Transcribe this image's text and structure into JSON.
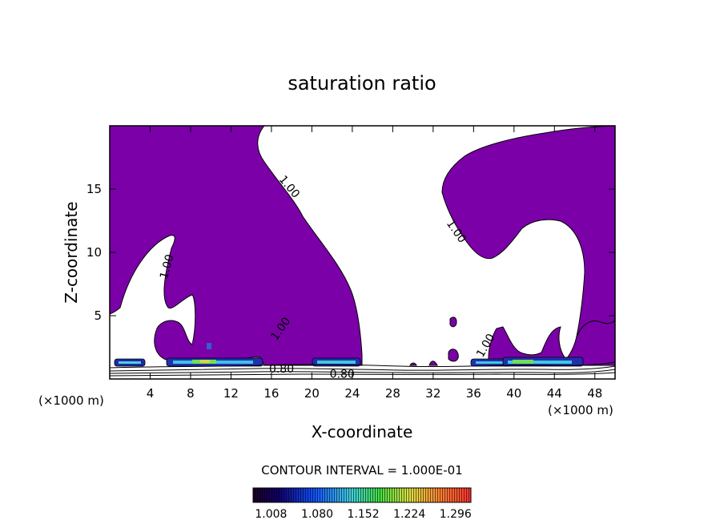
{
  "chart_data": {
    "type": "heatmap",
    "title": "saturation ratio",
    "xlabel": "X-coordinate",
    "ylabel": "Z-coordinate",
    "x_unit_note_left": "(×1000 m)",
    "x_unit_note_right": "(×1000 m)",
    "xlim": [
      0,
      50
    ],
    "ylim": [
      0,
      20
    ],
    "x_ticks": [
      4,
      8,
      12,
      16,
      20,
      24,
      28,
      32,
      36,
      40,
      44,
      48
    ],
    "y_ticks": [
      5,
      10,
      15
    ],
    "contour_interval_label": "CONTOUR INTERVAL = 1.000E-01",
    "colorbar_ticks": [
      "1.008",
      "1.080",
      "1.152",
      "1.224",
      "1.296"
    ],
    "colorbar_range": [
      0.98,
      1.32
    ],
    "contour_labels": [
      {
        "text": "1.00",
        "x": 17.5,
        "z": 15.0,
        "angle": 50
      },
      {
        "text": "1.00",
        "x": 6.0,
        "z": 8.8,
        "angle": -75
      },
      {
        "text": "1.00",
        "x": 17.2,
        "z": 3.8,
        "angle": -55
      },
      {
        "text": "1.00",
        "x": 34.0,
        "z": 11.5,
        "angle": 55
      },
      {
        "text": "1.00",
        "x": 37.5,
        "z": 2.5,
        "angle": -60
      },
      {
        "text": "0.80",
        "x": 17.0,
        "z": 0.5,
        "angle": 0
      },
      {
        "text": "0.80",
        "x": 23.0,
        "z": 0.1,
        "angle": 0
      }
    ],
    "colors": {
      "saturated_fill": "#7b00a8",
      "background": "#ffffff",
      "contour_line": "#000000"
    }
  }
}
